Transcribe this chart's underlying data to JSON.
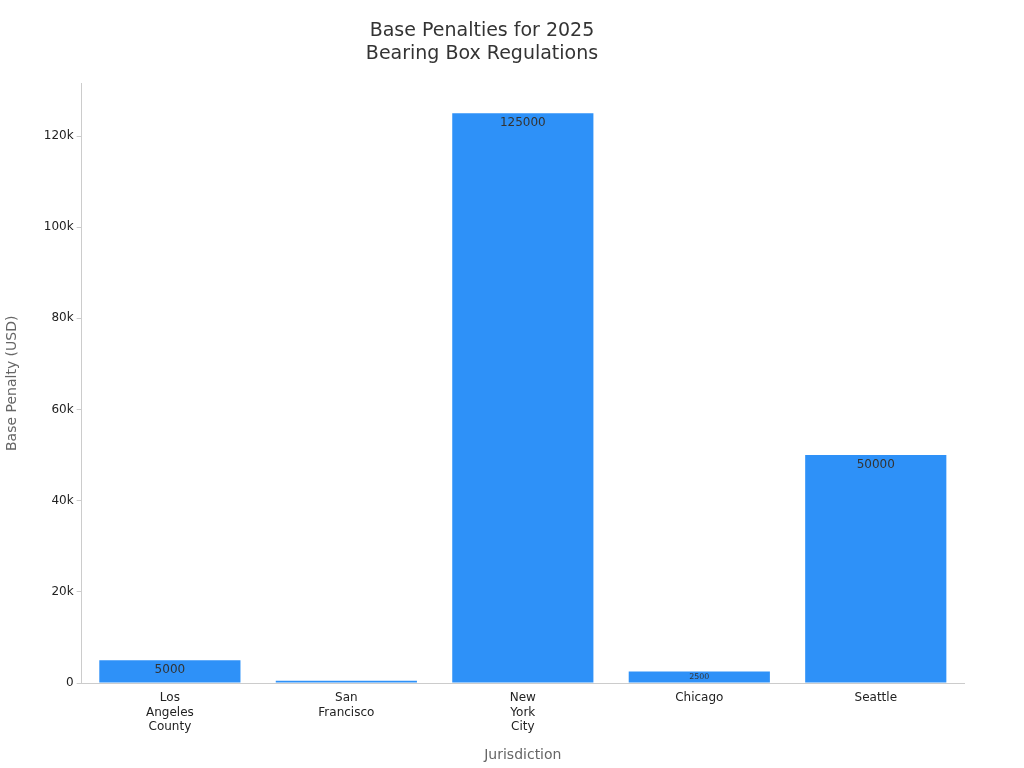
{
  "chart_data": {
    "type": "bar",
    "title": "Base Penalties for 2025\nBearing Box Regulations",
    "xlabel": "Jurisdiction",
    "ylabel": "Base Penalty (USD)",
    "categories": [
      "Los Angeles County",
      "San Francisco",
      "New York City",
      "Chicago",
      "Seattle"
    ],
    "values": [
      5000,
      500,
      125000,
      2500,
      50000
    ],
    "value_labels": [
      "5000",
      null,
      "125000",
      "2500",
      "50000"
    ],
    "color": "#2e91f8",
    "ylim": [
      0,
      131500
    ],
    "yticks": [
      0,
      {
        "value": 20000,
        "label": "20k"
      },
      {
        "value": 40000,
        "label": "40k"
      },
      {
        "value": 60000,
        "label": "60k"
      },
      {
        "value": 80000,
        "label": "80k"
      },
      {
        "value": 100000,
        "label": "100k"
      },
      {
        "value": 120000,
        "label": "120k"
      }
    ],
    "grid": false,
    "legend": false
  }
}
